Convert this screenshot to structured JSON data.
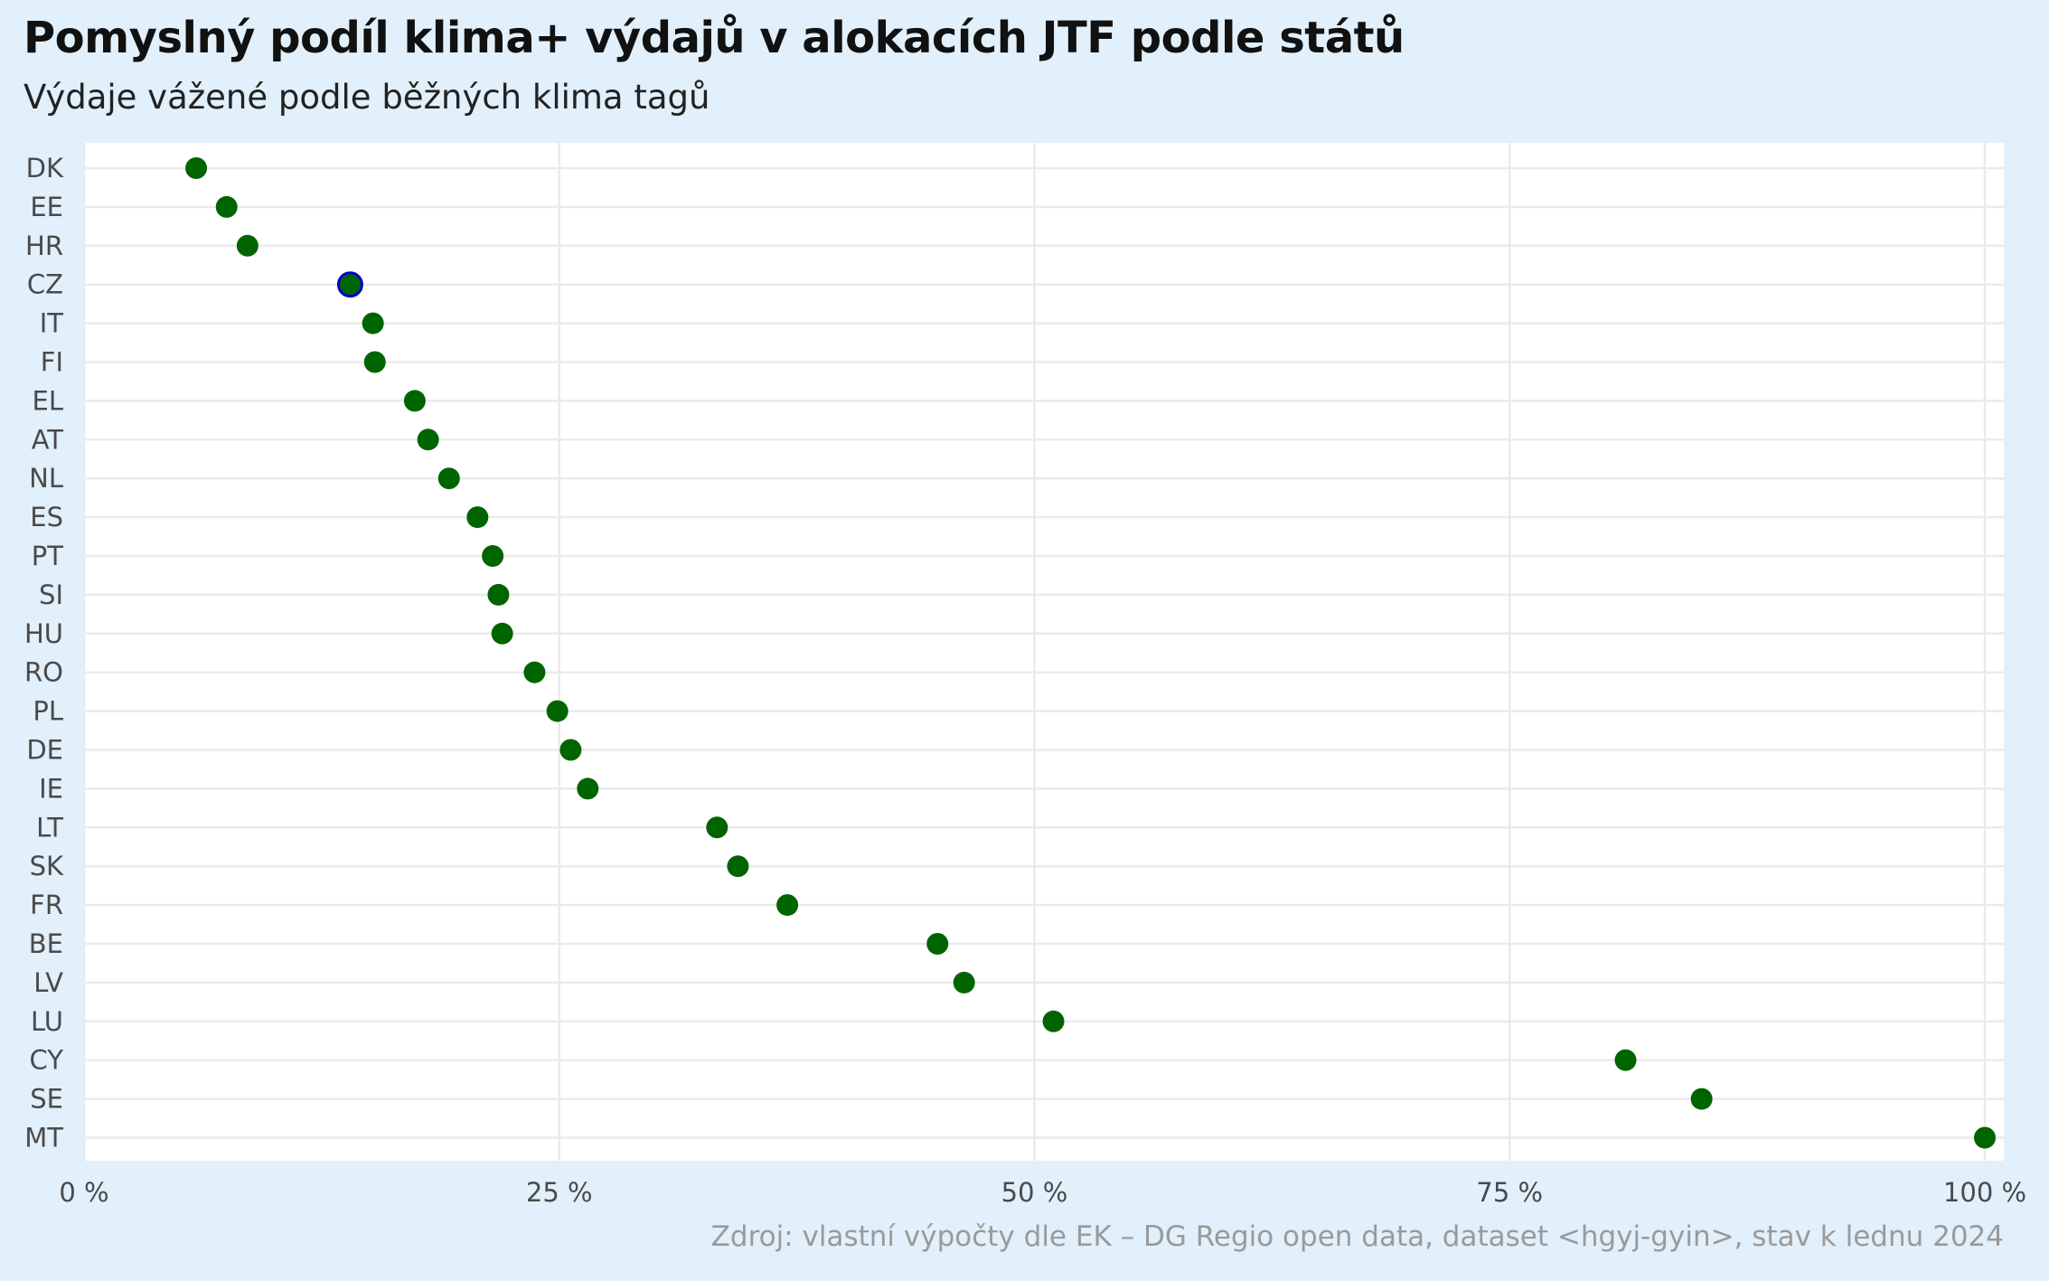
{
  "title": "Pomyslný podíl klima+ výdajů v alokacích JTF podle států",
  "subtitle": "Výdaje vážené podle běžných klima tagů",
  "caption": "Zdroj: vlastní výpočty dle EK – DG Regio open data, dataset <hgyj-gyin>, stav k lednu 2024",
  "colors": {
    "background": "#e1f0fb",
    "panel": "#ffffff",
    "grid": "#ebebeb",
    "point": "#006400",
    "highlight_stroke": "#0000cd"
  },
  "chart_data": {
    "type": "scatter",
    "title": "Pomyslný podíl klima+ výdajů v alokacích JTF podle států",
    "subtitle": "Výdaje vážené podle běžných klima tagů",
    "xlabel": "",
    "ylabel": "",
    "xlim": [
      0,
      1
    ],
    "x_ticks": [
      0,
      0.25,
      0.5,
      0.75,
      1
    ],
    "x_tick_labels": [
      "0 %",
      "25 %",
      "50 %",
      "75 %",
      "100 %"
    ],
    "grid": true,
    "highlight": "CZ",
    "categories": [
      "DK",
      "EE",
      "HR",
      "CZ",
      "IT",
      "FI",
      "EL",
      "AT",
      "NL",
      "ES",
      "PT",
      "SI",
      "HU",
      "RO",
      "PL",
      "DE",
      "IE",
      "LT",
      "SK",
      "FR",
      "BE",
      "LV",
      "LU",
      "CY",
      "SE",
      "MT"
    ],
    "values": [
      0.059,
      0.075,
      0.086,
      0.14,
      0.152,
      0.153,
      0.174,
      0.181,
      0.192,
      0.207,
      0.215,
      0.218,
      0.22,
      0.237,
      0.249,
      0.256,
      0.265,
      0.333,
      0.344,
      0.37,
      0.449,
      0.463,
      0.51,
      0.811,
      0.851,
      1.0
    ]
  }
}
